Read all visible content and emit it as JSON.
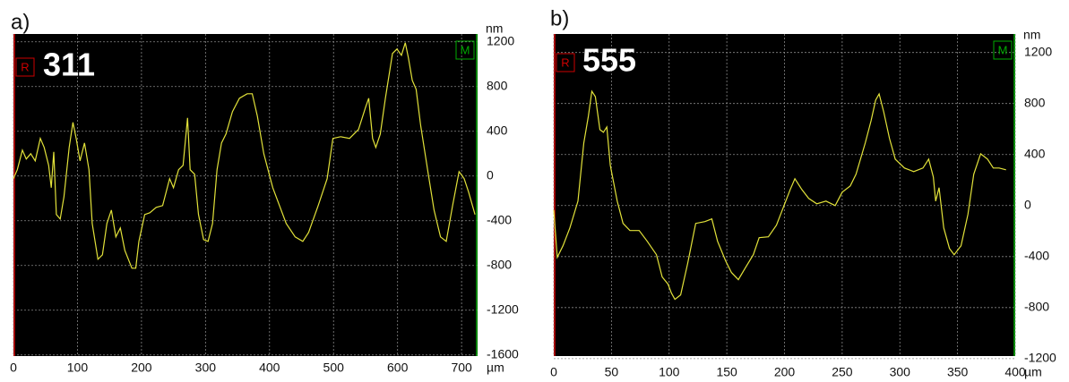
{
  "chart_data": [
    {
      "type": "line",
      "label": "a)",
      "annotation": "311",
      "markers": [
        "R",
        "M"
      ],
      "y_unit": "nm",
      "x_unit": "µm",
      "color": "#e2e23a",
      "background": "#000000",
      "grid": true,
      "xlim": [
        0,
        725
      ],
      "xticks": [
        0,
        100,
        200,
        300,
        400,
        500,
        600,
        700
      ],
      "ylim": [
        -1610,
        1270
      ],
      "yticks": [
        1200,
        800,
        400,
        0,
        -400,
        -800,
        -1200,
        -1600
      ],
      "x": [
        0,
        6,
        14,
        20,
        27,
        34,
        42,
        48,
        55,
        59,
        63,
        67,
        73,
        79,
        87,
        93,
        98,
        104,
        111,
        118,
        123,
        132,
        139,
        146,
        153,
        160,
        167,
        174,
        185,
        191,
        196,
        205,
        213,
        223,
        233,
        244,
        250,
        258,
        265,
        272,
        276,
        283,
        289,
        297,
        304,
        311,
        318,
        325,
        332,
        342,
        353,
        365,
        373,
        381,
        391,
        405,
        426,
        440,
        452,
        461,
        476,
        490,
        499,
        511,
        525,
        539,
        550,
        555,
        561,
        566,
        573,
        581,
        592,
        599,
        606,
        612,
        617,
        623,
        629,
        636,
        648,
        657,
        667,
        676,
        686,
        696,
        704,
        711,
        721
      ],
      "values": [
        -24,
        56,
        232,
        152,
        200,
        136,
        336,
        256,
        96,
        -104,
        216,
        -344,
        -384,
        -184,
        256,
        480,
        336,
        136,
        296,
        56,
        -424,
        -744,
        -704,
        -424,
        -304,
        -544,
        -464,
        -664,
        -824,
        -824,
        -584,
        -344,
        -328,
        -280,
        -264,
        -24,
        -104,
        56,
        96,
        520,
        56,
        16,
        -344,
        -568,
        -584,
        -424,
        56,
        296,
        376,
        576,
        696,
        736,
        736,
        536,
        200,
        -104,
        -424,
        -544,
        -584,
        -504,
        -264,
        -24,
        336,
        352,
        336,
        416,
        616,
        696,
        336,
        256,
        376,
        696,
        1096,
        1136,
        1080,
        1192,
        1056,
        856,
        776,
        456,
        16,
        -304,
        -544,
        -584,
        -264,
        40,
        -24,
        -144,
        -344
      ]
    },
    {
      "type": "line",
      "label": "b)",
      "annotation": "555",
      "markers": [
        "R",
        "M"
      ],
      "y_unit": "nm",
      "x_unit": "µm",
      "color": "#e2e23a",
      "background": "#000000",
      "grid": true,
      "xlim": [
        0,
        400
      ],
      "xticks": [
        0,
        50,
        100,
        150,
        200,
        250,
        300,
        350,
        400
      ],
      "ylim": [
        -1180,
        1345
      ],
      "yticks": [
        1200,
        800,
        400,
        0,
        -400,
        -800,
        -1200
      ],
      "x": [
        0,
        3,
        8,
        14,
        21,
        26,
        30,
        33,
        36,
        40,
        43,
        46,
        49,
        55,
        60,
        66,
        74,
        81,
        89,
        94,
        99,
        102,
        105,
        110,
        116,
        123,
        131,
        137,
        142,
        149,
        154,
        160,
        166,
        173,
        178,
        186,
        193,
        199,
        205,
        209,
        215,
        221,
        228,
        236,
        244,
        250,
        257,
        262,
        270,
        275,
        279,
        282,
        286,
        291,
        296,
        304,
        312,
        320,
        325,
        329,
        331,
        334,
        338,
        343,
        347,
        353,
        359,
        364,
        370,
        376,
        381,
        386,
        392
      ],
      "values": [
        -35,
        -406,
        -315,
        -175,
        35,
        490,
        700,
        896,
        854,
        595,
        574,
        616,
        315,
        35,
        -140,
        -196,
        -196,
        -280,
        -385,
        -560,
        -616,
        -686,
        -735,
        -700,
        -455,
        -140,
        -126,
        -105,
        -280,
        -434,
        -525,
        -581,
        -490,
        -385,
        -252,
        -245,
        -154,
        -14,
        126,
        210,
        126,
        56,
        14,
        35,
        0,
        105,
        154,
        245,
        490,
        665,
        826,
        875,
        735,
        525,
        364,
        294,
        266,
        294,
        364,
        224,
        35,
        140,
        -175,
        -336,
        -385,
        -315,
        -70,
        245,
        406,
        364,
        294,
        294,
        280
      ]
    }
  ]
}
